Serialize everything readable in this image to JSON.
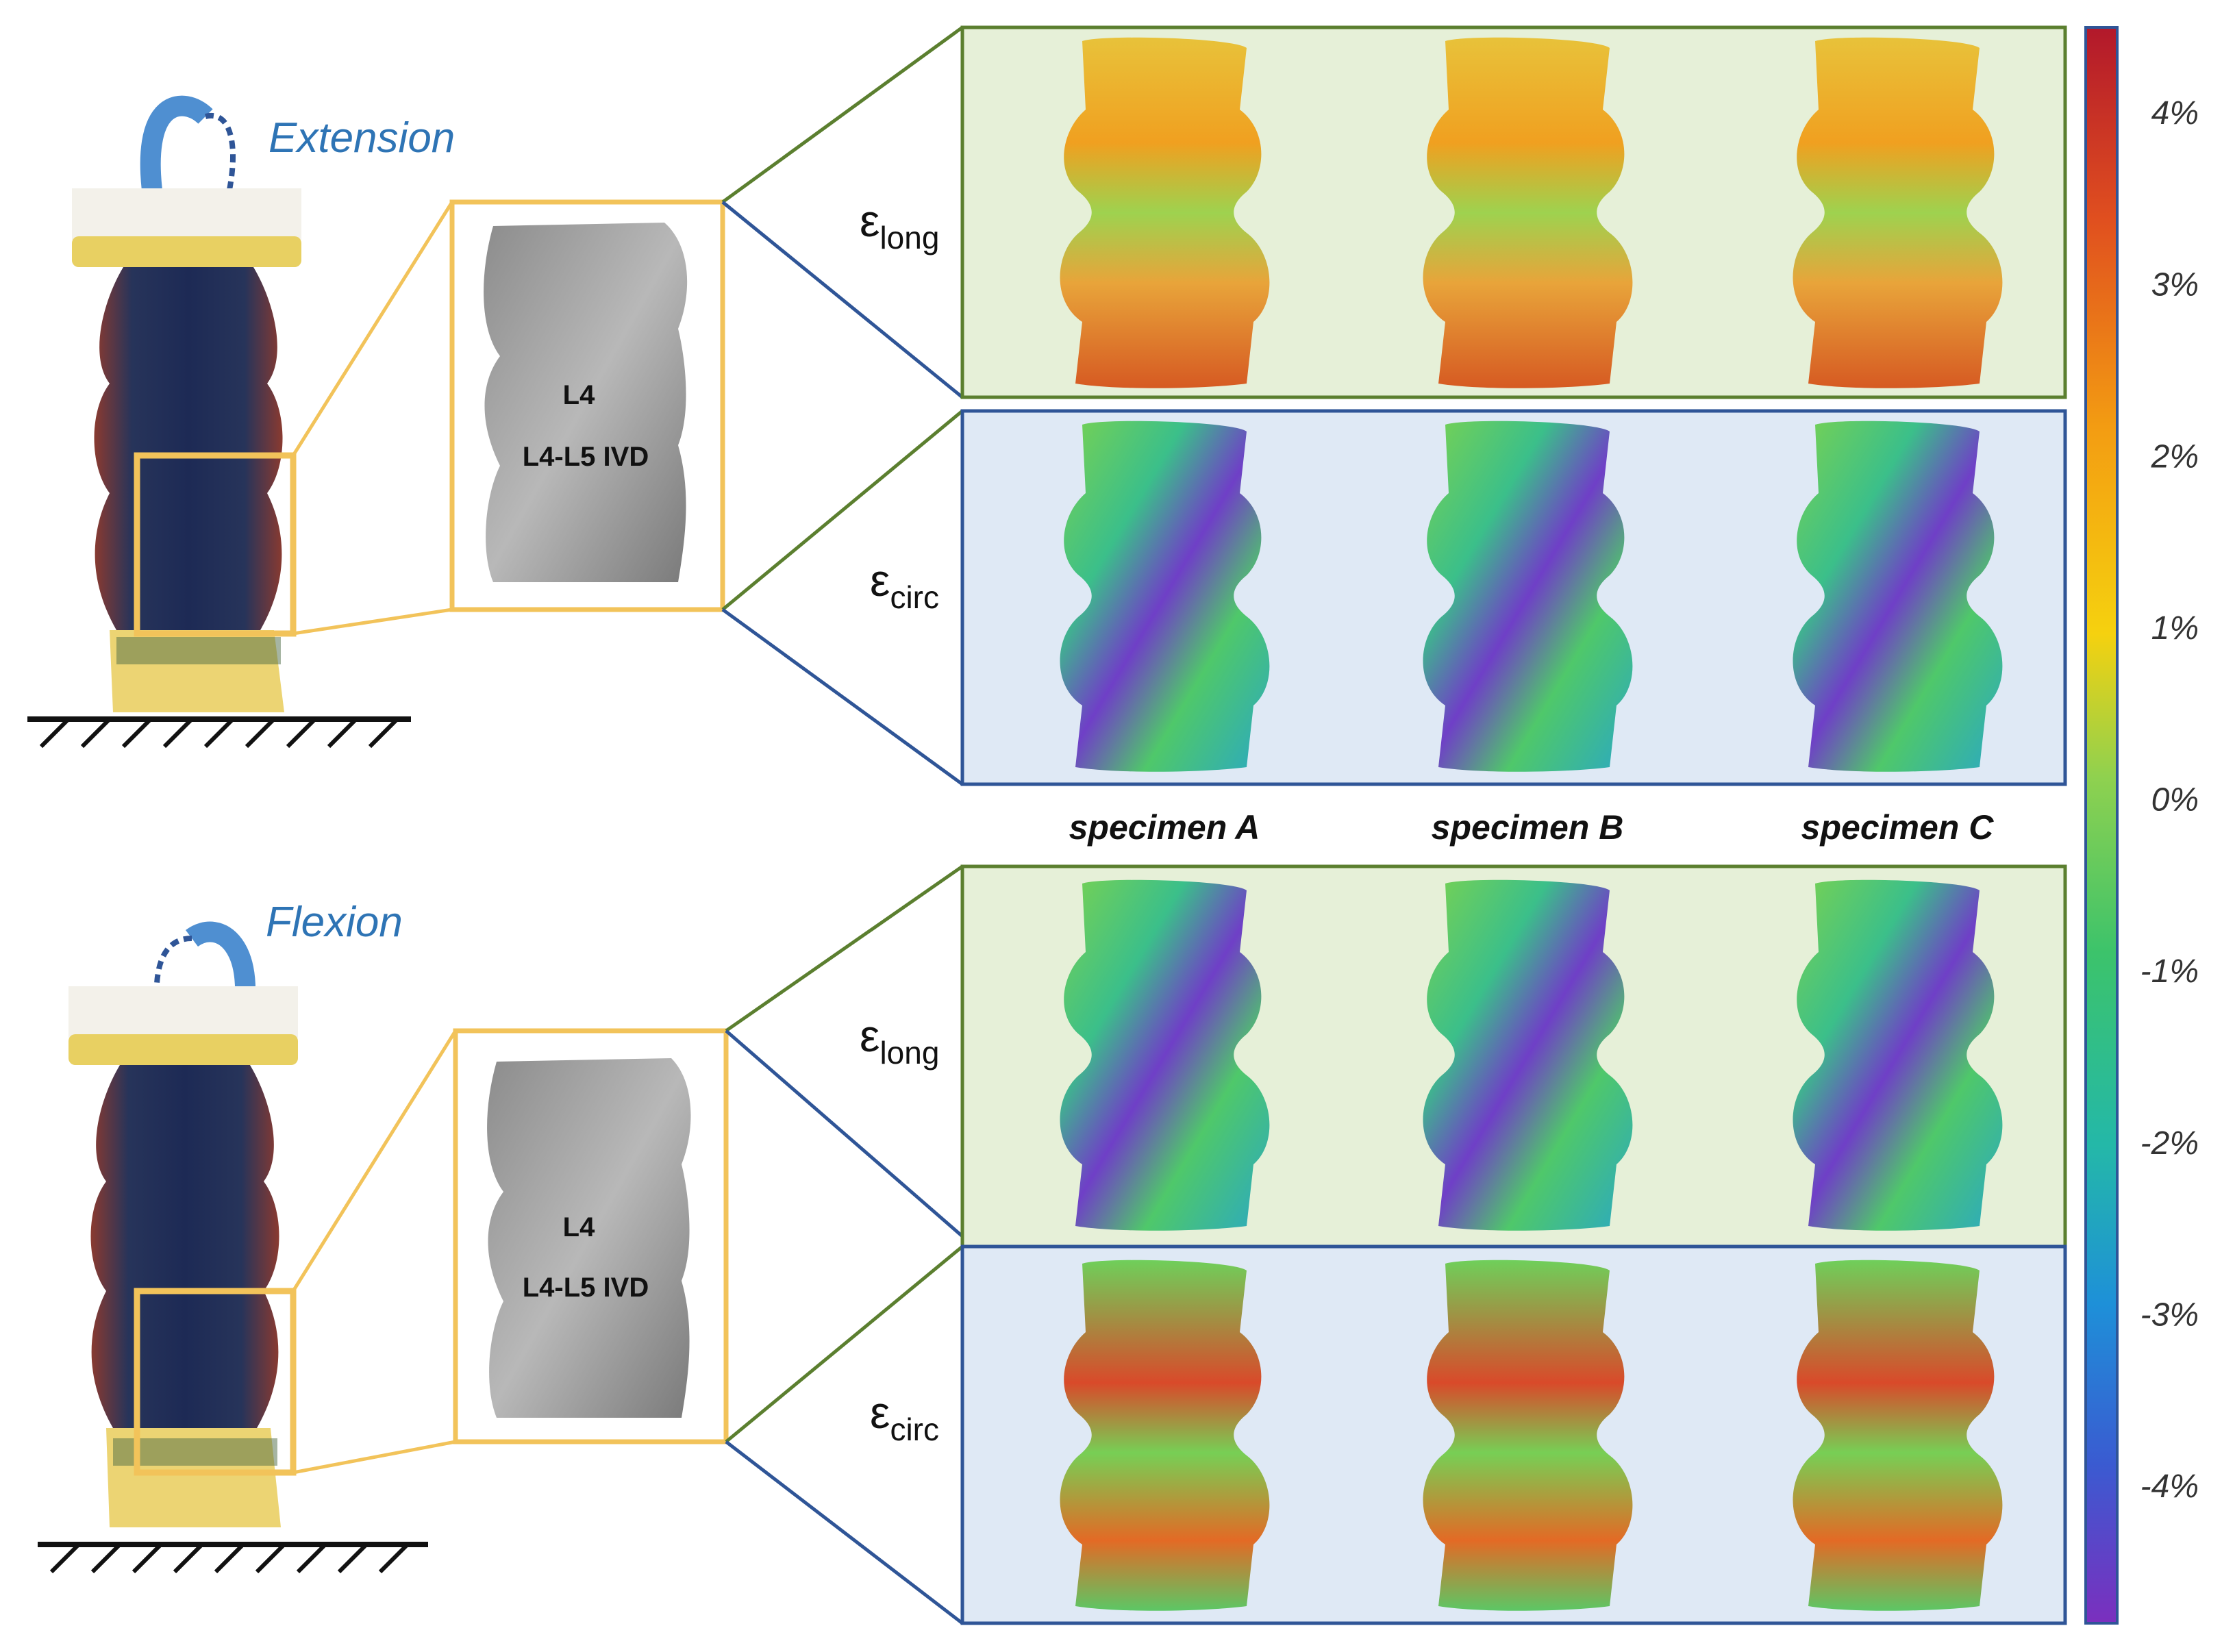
{
  "motions": [
    {
      "label": "Extension"
    },
    {
      "label": "Flexion"
    }
  ],
  "vertebra_labels": {
    "upper": "L4",
    "disc": "L4-L5 IVD"
  },
  "specimens": [
    "specimen A",
    "specimen B",
    "specimen C"
  ],
  "strain_rows": [
    {
      "symbol": "ε",
      "subscript": "long",
      "motion": "Extension",
      "panel_color": "#e6f0d8"
    },
    {
      "symbol": "ε",
      "subscript": "circ",
      "motion": "Extension",
      "panel_color": "#dfe9f5"
    },
    {
      "symbol": "ε",
      "subscript": "long",
      "motion": "Flexion",
      "panel_color": "#e6f0d8"
    },
    {
      "symbol": "ε",
      "subscript": "circ",
      "motion": "Flexion",
      "panel_color": "#dfe9f5"
    }
  ],
  "colorbar": {
    "ticks": [
      "4%",
      "3%",
      "2%",
      "1%",
      "0%",
      "-1%",
      "-2%",
      "-3%",
      "-4%"
    ],
    "max": 4.5,
    "min": -4.5,
    "colors": [
      "#b2182b",
      "#e04f1f",
      "#f39c12",
      "#f5d10f",
      "#8fd14f",
      "#3cc36b",
      "#24b8a8",
      "#1e90d8",
      "#3a5bd1",
      "#7b2fbe"
    ]
  },
  "colors": {
    "green_panel_border": "#5b7f2f",
    "blue_panel_border": "#2f5597",
    "zoom_box": "#f2c35a",
    "motion_text": "#2e74b5"
  }
}
